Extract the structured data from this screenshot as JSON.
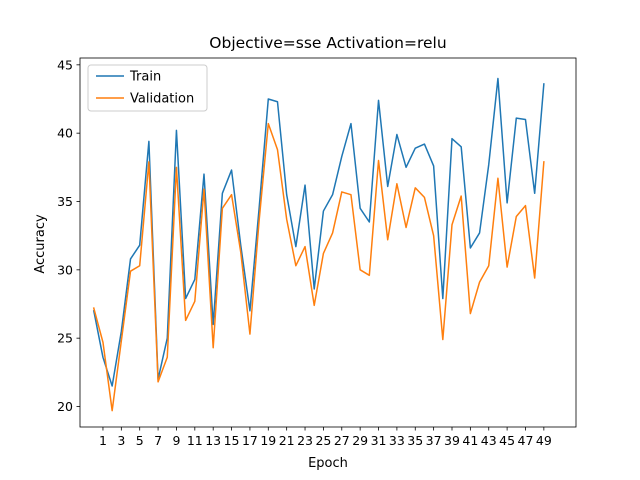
{
  "chart_data": {
    "type": "line",
    "title": "Objective=sse Activation=relu",
    "xlabel": "Epoch",
    "ylabel": "Accuracy",
    "xlim": [
      -1.5,
      52.5
    ],
    "ylim": [
      18.5,
      45.5
    ],
    "x_ticks": [
      1,
      3,
      5,
      7,
      9,
      11,
      13,
      15,
      17,
      19,
      21,
      23,
      25,
      27,
      29,
      31,
      33,
      35,
      37,
      39,
      41,
      43,
      45,
      47,
      49
    ],
    "y_ticks": [
      20,
      25,
      30,
      35,
      40,
      45
    ],
    "legend_position": "top-left",
    "x": [
      0,
      1,
      2,
      3,
      4,
      5,
      6,
      7,
      8,
      9,
      10,
      11,
      12,
      13,
      14,
      15,
      16,
      17,
      18,
      19,
      20,
      21,
      22,
      23,
      24,
      25,
      26,
      27,
      28,
      29,
      30,
      31,
      32,
      33,
      34,
      35,
      36,
      37,
      38,
      39,
      40,
      41,
      42,
      43,
      44,
      45,
      46,
      47,
      48,
      49
    ],
    "series": [
      {
        "name": "Train",
        "color": "#1f77b4",
        "values": [
          27.0,
          23.6,
          21.5,
          25.5,
          30.8,
          31.8,
          39.4,
          22.0,
          25.0,
          40.2,
          27.9,
          29.3,
          37.0,
          26.0,
          35.6,
          37.3,
          31.8,
          27.0,
          34.5,
          42.5,
          42.3,
          35.5,
          31.7,
          36.2,
          28.6,
          34.3,
          35.5,
          38.3,
          40.7,
          34.5,
          33.5,
          42.4,
          36.1,
          39.9,
          37.5,
          38.9,
          39.2,
          37.6,
          27.9,
          39.6,
          39.0,
          31.6,
          32.7,
          37.7,
          44.0,
          34.9,
          41.1,
          41.0,
          35.6,
          43.6
        ]
      },
      {
        "name": "Validation",
        "color": "#ff7f0e",
        "values": [
          27.2,
          24.7,
          19.7,
          24.8,
          29.9,
          30.3,
          37.9,
          21.8,
          23.6,
          37.5,
          26.3,
          27.7,
          35.9,
          24.3,
          34.5,
          35.5,
          31.3,
          25.3,
          33.6,
          40.7,
          38.8,
          33.7,
          30.3,
          31.7,
          27.4,
          31.2,
          32.7,
          35.7,
          35.5,
          30.0,
          29.6,
          38.0,
          32.2,
          36.3,
          33.1,
          36.0,
          35.3,
          32.5,
          24.9,
          33.3,
          35.4,
          26.8,
          29.1,
          30.3,
          36.7,
          30.2,
          33.9,
          34.7,
          29.4,
          37.9
        ]
      }
    ]
  }
}
